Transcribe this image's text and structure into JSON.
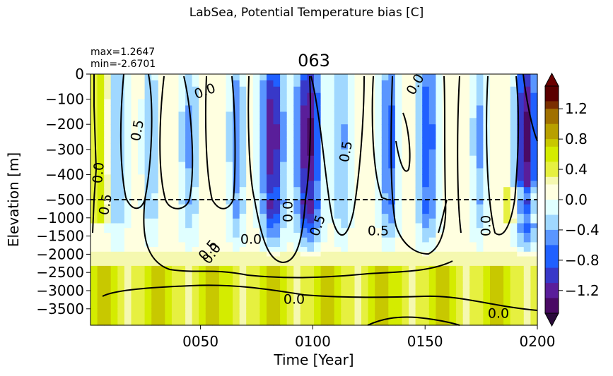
{
  "figure": {
    "suptitle": "LabSea, Potential Temperature bias [C]",
    "panel_title": "063",
    "stats": {
      "max": "max=1.2647",
      "min": "min=-2.6701"
    }
  },
  "chart_data": {
    "type": "heatmap",
    "title": "063",
    "xlabel": "Time [Year]",
    "ylabel": "Elevation [m]",
    "x_ticks": [
      "0050",
      "0100",
      "0150",
      "0200"
    ],
    "x_tick_values": [
      50,
      100,
      150,
      200
    ],
    "xlim": [
      1,
      200
    ],
    "y_ticks_upper": [
      "0",
      "−100",
      "−200",
      "−300",
      "−400",
      "−500"
    ],
    "y_ticks_lower": [
      "−1000",
      "−1500",
      "−2000",
      "−2500",
      "−3000",
      "−3500"
    ],
    "y_tick_values_upper": [
      0,
      -100,
      -200,
      -300,
      -400,
      -500
    ],
    "y_tick_values_lower": [
      -1000,
      -1500,
      -2000,
      -2500,
      -3000,
      -3500
    ],
    "split_depth": -500,
    "ylim": [
      -3950,
      0
    ],
    "colorbar": {
      "ticks": [
        "1.2",
        "0.8",
        "0.4",
        "0.0",
        "−0.4",
        "−0.8",
        "−1.2"
      ],
      "tick_values": [
        1.2,
        0.8,
        0.4,
        0.0,
        -0.4,
        -0.8,
        -1.2
      ],
      "range": [
        -1.5,
        1.5
      ],
      "extend": "both"
    },
    "contour_labels": [
      "0.0",
      "0.5",
      "0.0",
      "0.0",
      "0.0",
      "0.5",
      "0.0",
      "0.5",
      "0.5",
      "0.0",
      "0.0",
      "0.0",
      "0.0",
      "0.5",
      "0.5"
    ],
    "colors": {
      "positive": [
        "#ffffe0",
        "#f5f8b0",
        "#e6f040",
        "#d4ec00",
        "#c8c800",
        "#b8a000",
        "#a07000",
        "#7a2e00",
        "#5a0000"
      ],
      "negative": [
        "#e0ffff",
        "#a0d8ff",
        "#5a96ff",
        "#2060ff",
        "#3838c8",
        "#5a1e9a",
        "#4a0a64"
      ]
    }
  }
}
